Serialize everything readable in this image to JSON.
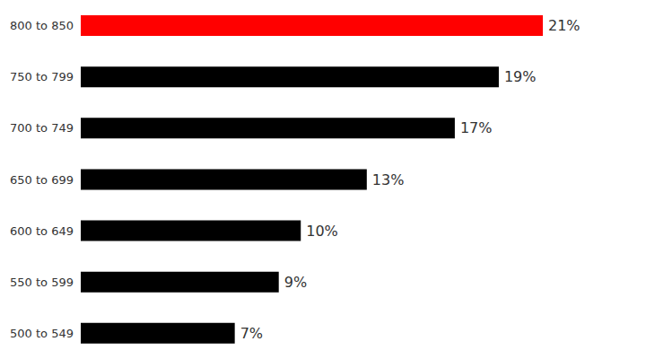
{
  "chart_data": {
    "type": "bar",
    "orientation": "horizontal",
    "categories": [
      "800 to 850",
      "750 to 799",
      "700 to 749",
      "650 to 699",
      "600 to 649",
      "550 to 599",
      "500 to 549"
    ],
    "values": [
      21,
      19,
      17,
      13,
      10,
      9,
      7
    ],
    "value_labels": [
      "21%",
      "19%",
      "17%",
      "13%",
      "10%",
      "9%",
      "7%"
    ],
    "colors": [
      "#ff0000",
      "#000000",
      "#000000",
      "#000000",
      "#000000",
      "#000000",
      "#000000"
    ],
    "data_labels": true,
    "tick_labels": "y",
    "grid": false
  }
}
